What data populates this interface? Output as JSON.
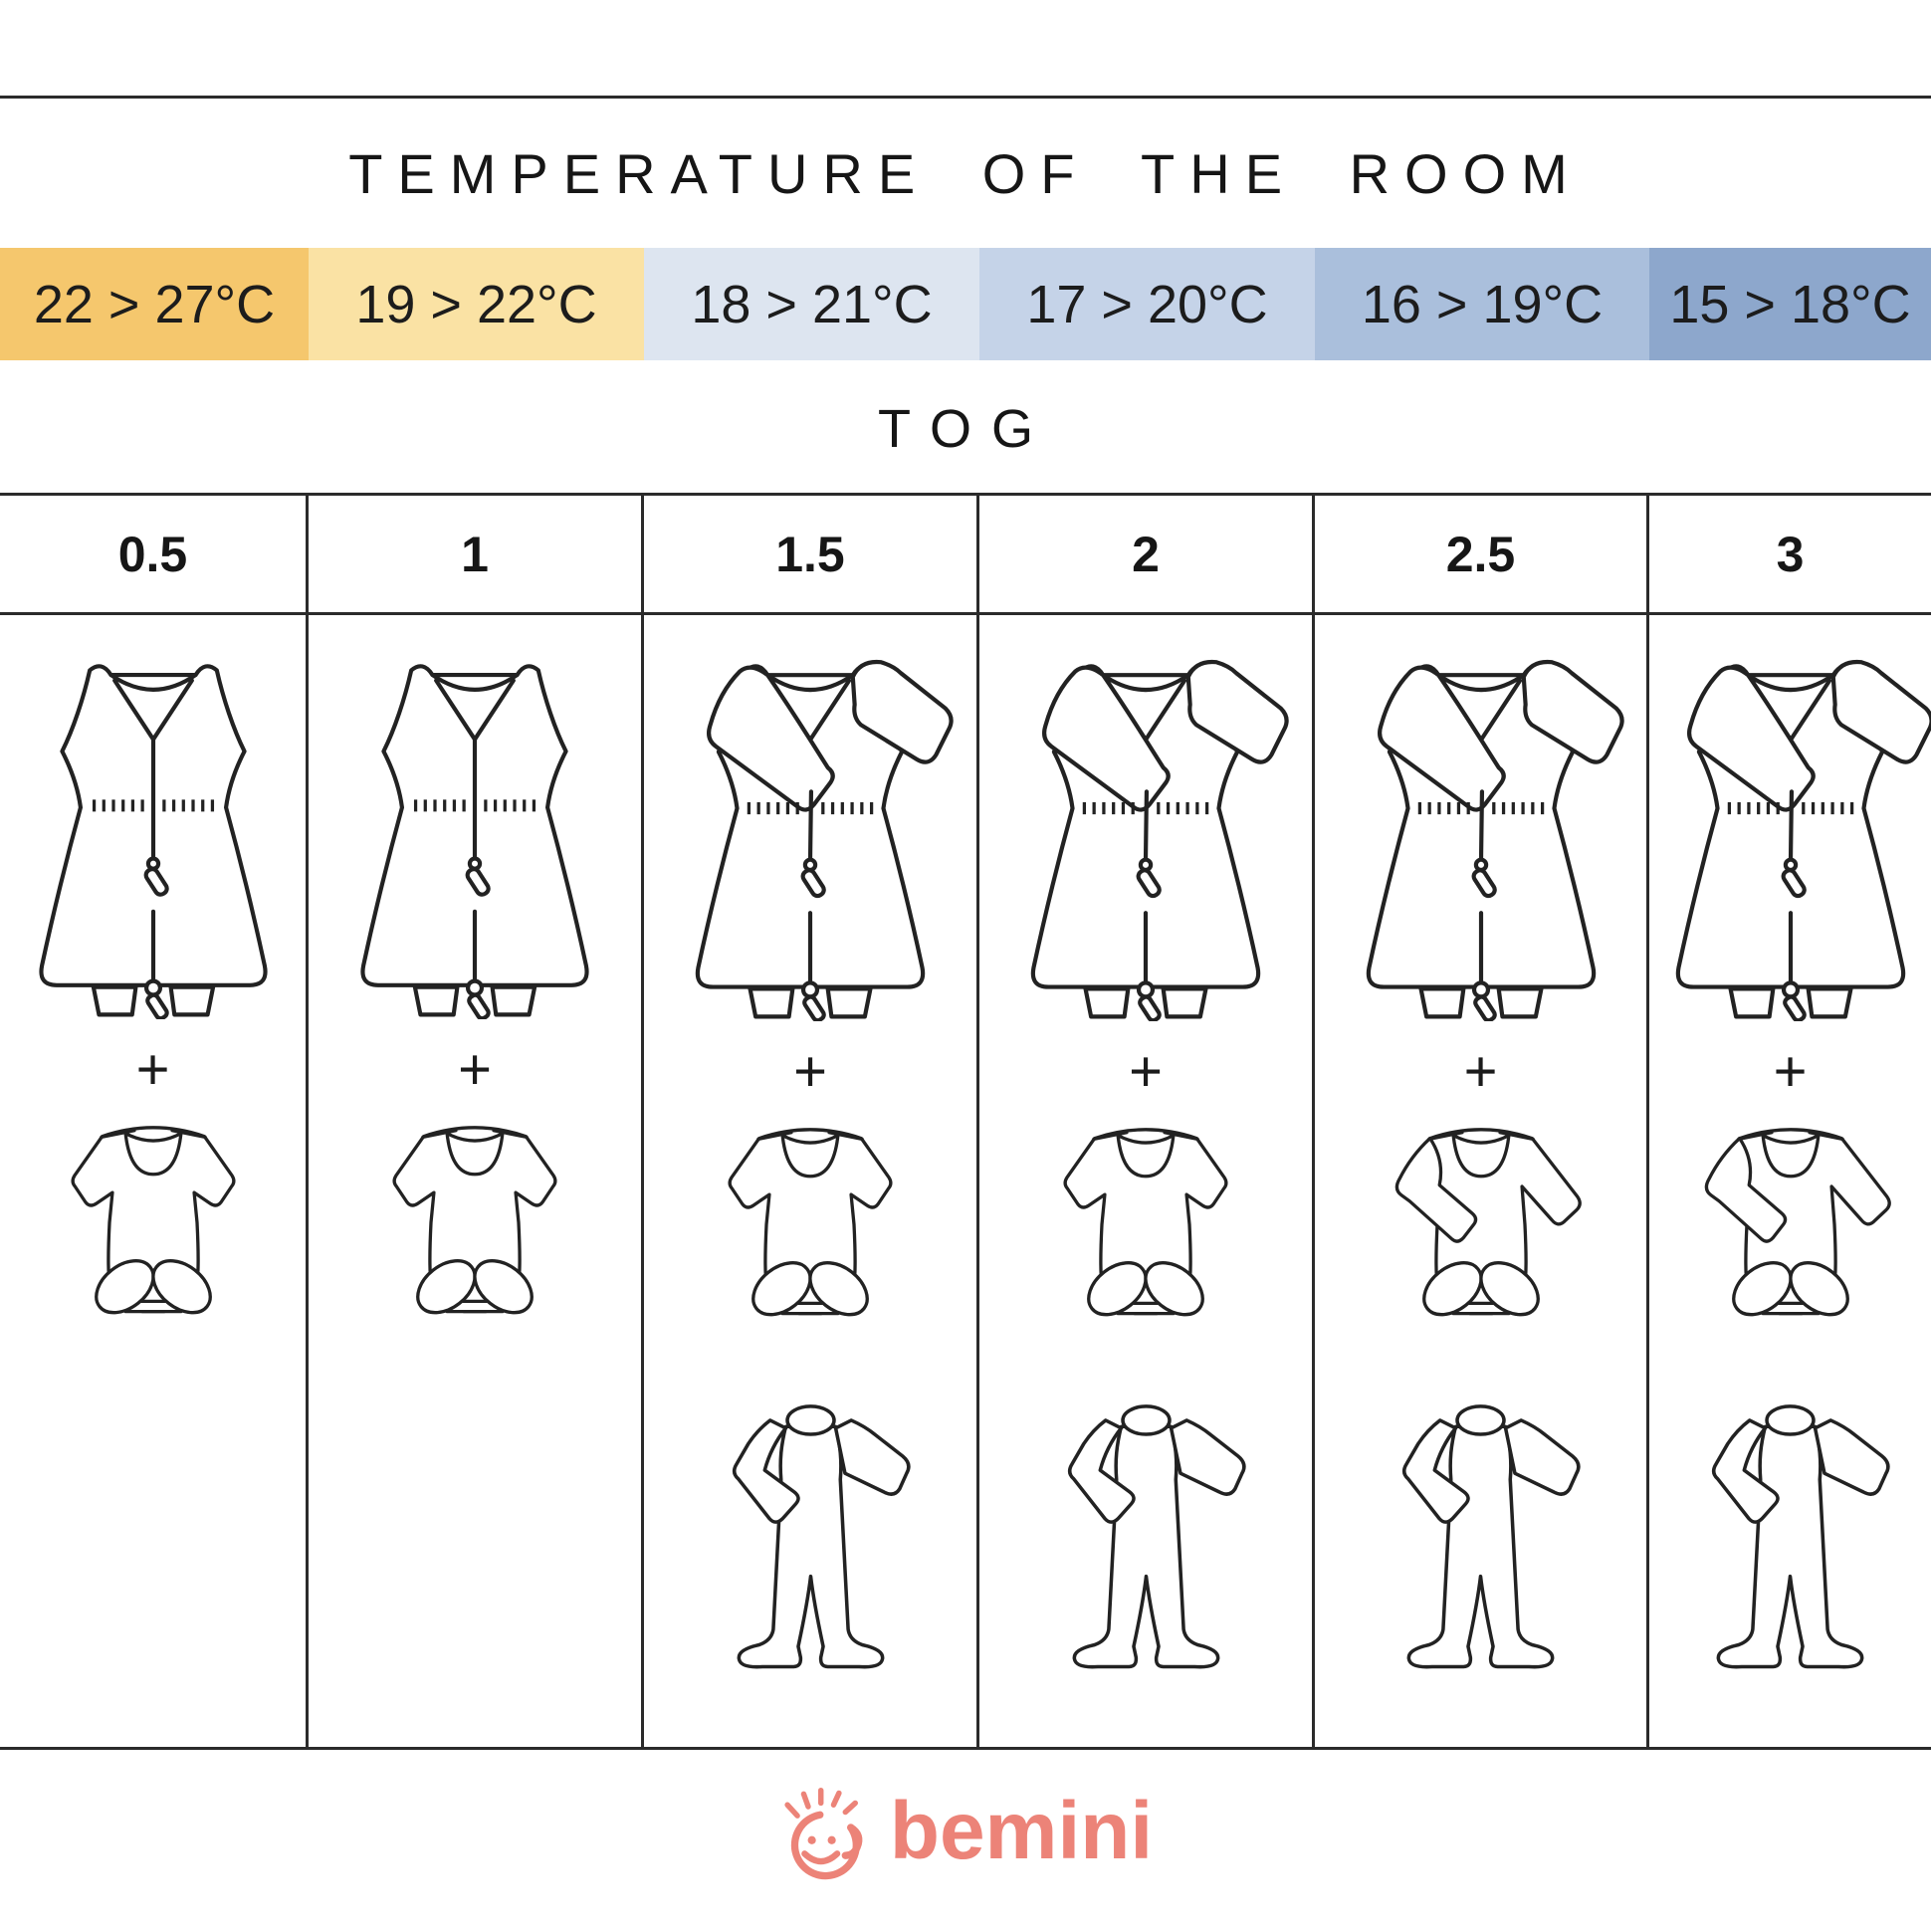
{
  "header": {
    "title": "TEMPERATURE OF THE ROOM",
    "tog_label": "TOG"
  },
  "temperature_cells": [
    {
      "range": "22 > 27°C",
      "color": "#f5c76d"
    },
    {
      "range": "19 > 22°C",
      "color": "#fae2a4"
    },
    {
      "range": "18 > 21°C",
      "color": "#dde5f0"
    },
    {
      "range": "17 > 20°C",
      "color": "#c5d3e8"
    },
    {
      "range": "16 > 19°C",
      "color": "#aabfdc"
    },
    {
      "range": "15 > 18°C",
      "color": "#8da7cc"
    }
  ],
  "plus_sign": "+",
  "columns": [
    {
      "tog": "0.5",
      "temperature": "22 > 27°C",
      "garments": [
        "sleeping-bag-sleeveless",
        "bodysuit-short-sleeve"
      ]
    },
    {
      "tog": "1",
      "temperature": "19 > 22°C",
      "garments": [
        "sleeping-bag-sleeveless",
        "bodysuit-short-sleeve"
      ]
    },
    {
      "tog": "1.5",
      "temperature": "18 > 21°C",
      "garments": [
        "sleeping-bag-long-sleeve",
        "bodysuit-short-sleeve",
        "pajama-with-feet"
      ]
    },
    {
      "tog": "2",
      "temperature": "17 > 20°C",
      "garments": [
        "sleeping-bag-long-sleeve",
        "bodysuit-short-sleeve",
        "pajama-with-feet"
      ]
    },
    {
      "tog": "2.5",
      "temperature": "16 > 19°C",
      "garments": [
        "sleeping-bag-long-sleeve",
        "bodysuit-long-sleeve",
        "pajama-with-feet"
      ]
    },
    {
      "tog": "3",
      "temperature": "15 > 18°C",
      "garments": [
        "sleeping-bag-long-sleeve",
        "bodysuit-long-sleeve",
        "pajama-with-feet"
      ]
    }
  ],
  "brand": {
    "name": "bemini",
    "color": "#ec8378"
  },
  "line_color": "#2b2b2b"
}
